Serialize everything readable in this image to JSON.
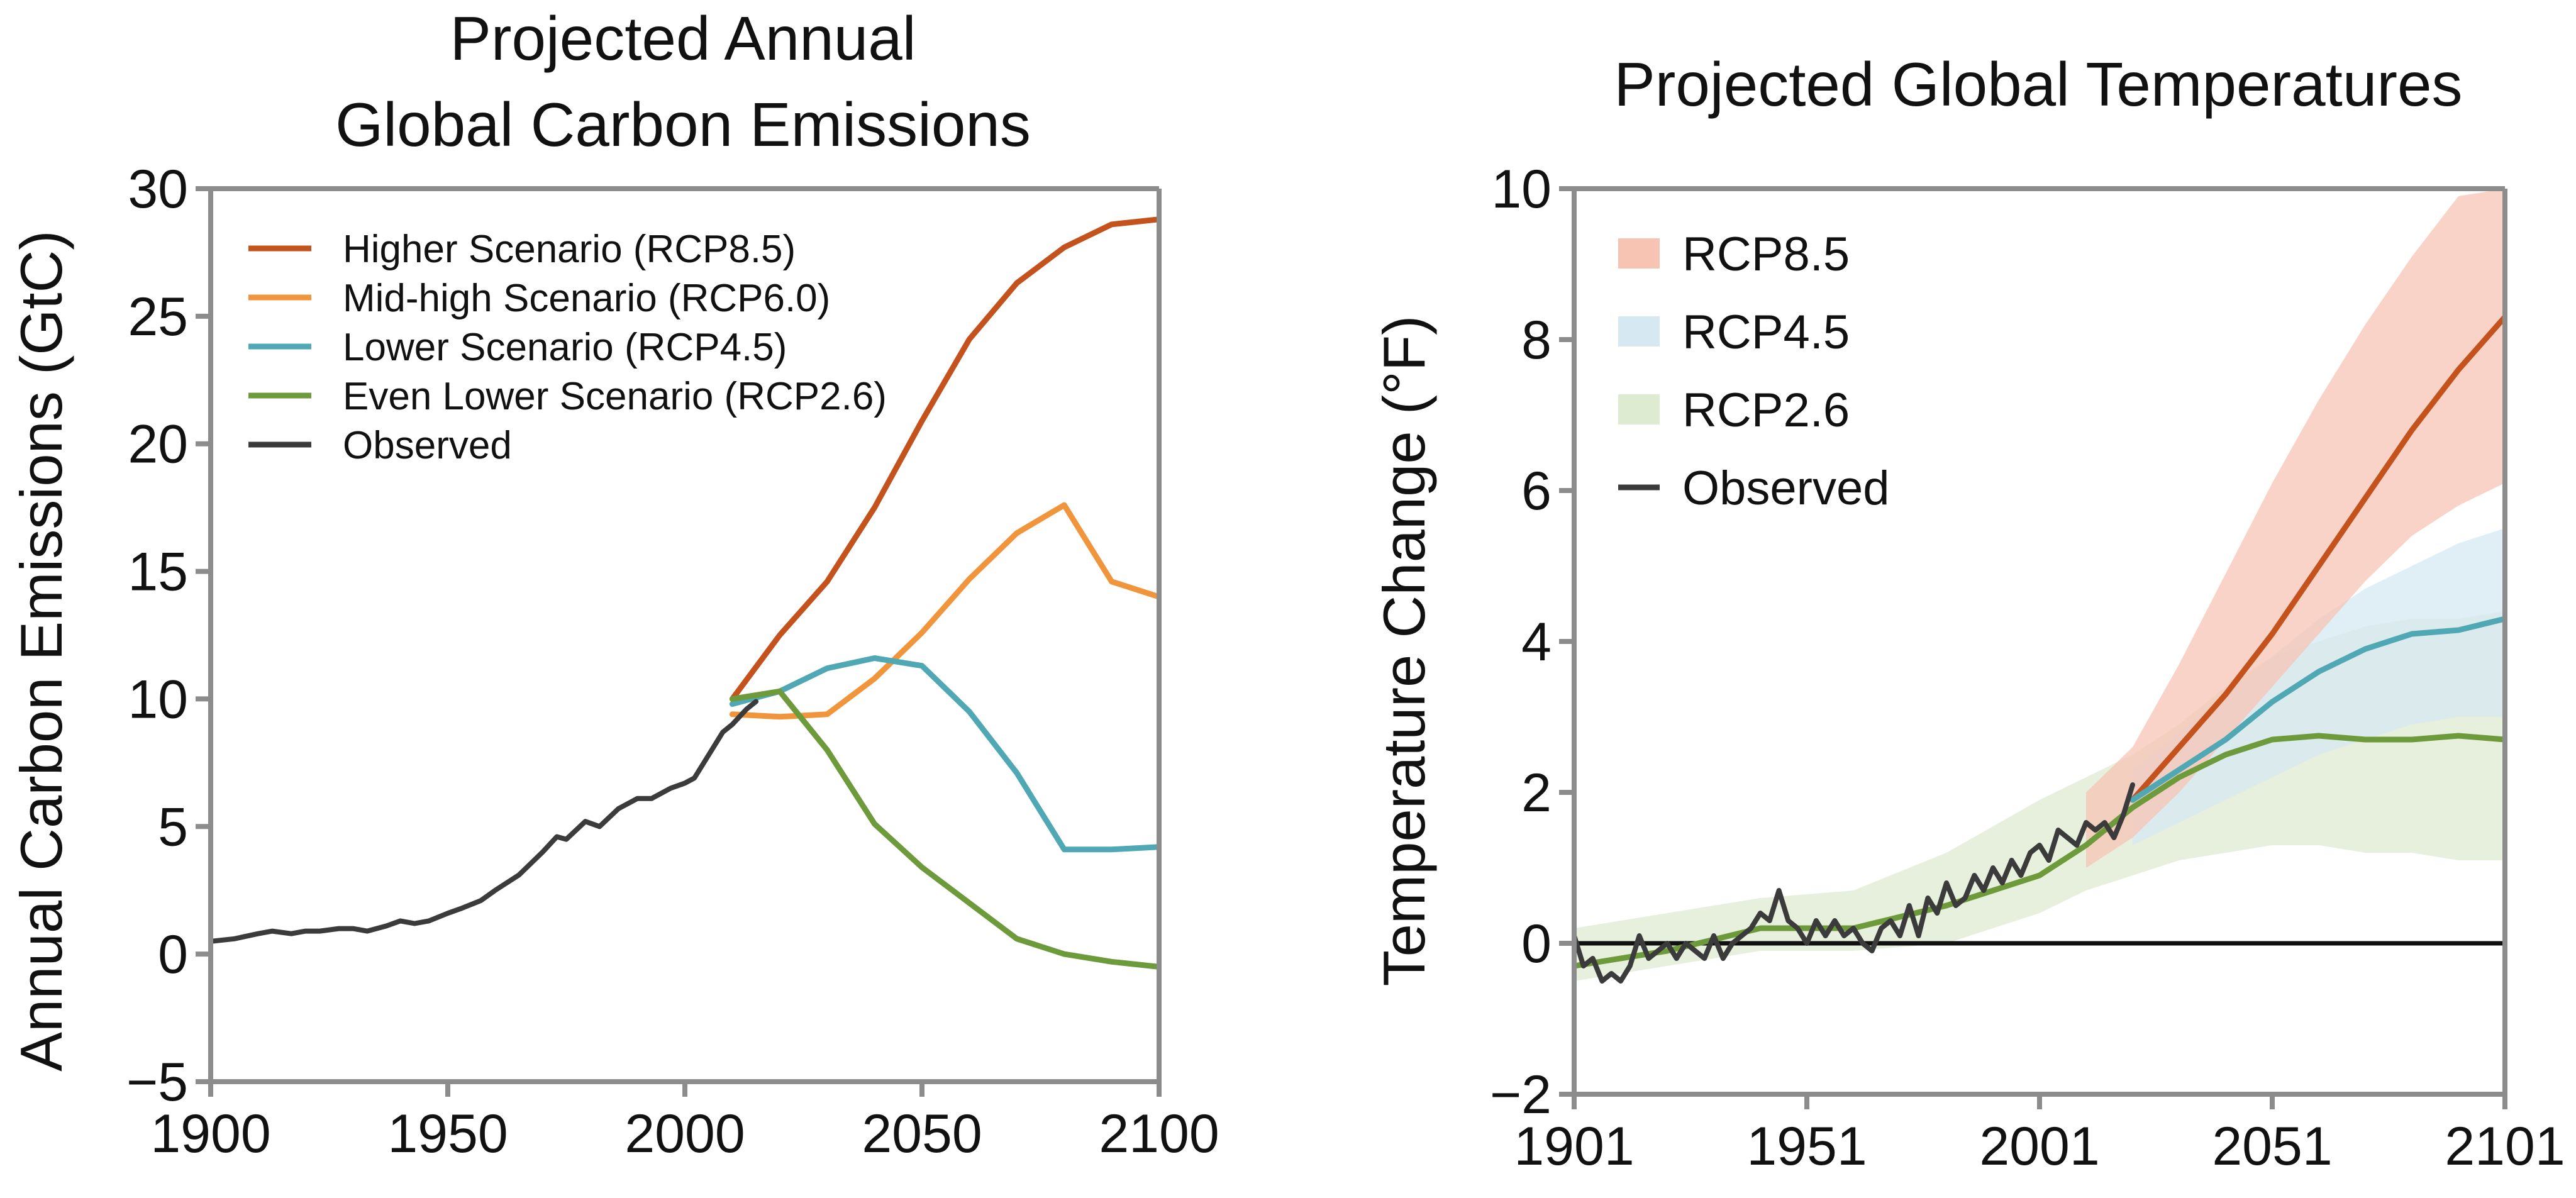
{
  "chart_data": [
    {
      "type": "line",
      "title": "Projected Annual Global Carbon Emissions",
      "title_lines": [
        "Projected Annual",
        "Global Carbon Emissions"
      ],
      "xlabel": "",
      "ylabel": "Annual Carbon Emissions (GtC)",
      "xlim": [
        1900,
        2100
      ],
      "ylim": [
        -5,
        30
      ],
      "x_ticks": [
        "1900",
        "1950",
        "2000",
        "2050",
        "2100"
      ],
      "y_ticks": [
        "−5",
        "0",
        "5",
        "10",
        "15",
        "20",
        "25",
        "30"
      ],
      "legend_position": "top-left",
      "series": [
        {
          "name": "Higher Scenario (RCP8.5)",
          "color": "#c4521c",
          "x": [
            2010,
            2020,
            2030,
            2040,
            2050,
            2060,
            2070,
            2080,
            2090,
            2100
          ],
          "y": [
            10.0,
            12.5,
            14.6,
            17.5,
            20.9,
            24.1,
            26.3,
            27.7,
            28.6,
            28.8
          ]
        },
        {
          "name": "Mid-high Scenario (RCP6.0)",
          "color": "#f0953b",
          "x": [
            2010,
            2020,
            2030,
            2040,
            2050,
            2060,
            2070,
            2080,
            2090,
            2100
          ],
          "y": [
            9.4,
            9.3,
            9.4,
            10.8,
            12.6,
            14.7,
            16.5,
            17.6,
            14.6,
            14.0
          ]
        },
        {
          "name": "Lower Scenario (RCP4.5)",
          "color": "#4fa8b3",
          "x": [
            2010,
            2020,
            2030,
            2040,
            2050,
            2060,
            2070,
            2080,
            2090,
            2100
          ],
          "y": [
            9.8,
            10.3,
            11.2,
            11.6,
            11.3,
            9.5,
            7.1,
            4.1,
            4.1,
            4.2
          ]
        },
        {
          "name": "Even Lower Scenario (RCP2.6)",
          "color": "#6d9a3a",
          "x": [
            2010,
            2020,
            2030,
            2040,
            2050,
            2060,
            2070,
            2080,
            2090,
            2100
          ],
          "y": [
            10.0,
            10.3,
            8.0,
            5.1,
            3.4,
            2.0,
            0.6,
            0.0,
            -0.3,
            -0.5
          ]
        },
        {
          "name": "Observed",
          "color": "#3b3b3b",
          "x": [
            1900,
            1905,
            1910,
            1913,
            1917,
            1920,
            1923,
            1927,
            1930,
            1933,
            1937,
            1940,
            1943,
            1946,
            1950,
            1953,
            1957,
            1960,
            1965,
            1970,
            1973,
            1975,
            1979,
            1982,
            1986,
            1990,
            1993,
            1997,
            2000,
            2002,
            2005,
            2008,
            2010,
            2013,
            2015
          ],
          "y": [
            0.5,
            0.6,
            0.8,
            0.9,
            0.8,
            0.9,
            0.9,
            1.0,
            1.0,
            0.9,
            1.1,
            1.3,
            1.2,
            1.3,
            1.6,
            1.8,
            2.1,
            2.5,
            3.1,
            4.0,
            4.6,
            4.5,
            5.2,
            5.0,
            5.7,
            6.1,
            6.1,
            6.5,
            6.7,
            6.9,
            7.8,
            8.7,
            9.0,
            9.6,
            9.9
          ]
        }
      ]
    },
    {
      "type": "area",
      "title": "Projected Global Temperatures",
      "xlabel": "",
      "ylabel": "Temperature Change (°F)",
      "xlim": [
        1901,
        2101
      ],
      "ylim": [
        -2,
        10
      ],
      "x_ticks": [
        "1901",
        "1951",
        "2001",
        "2051",
        "2101"
      ],
      "y_ticks": [
        "−2",
        "0",
        "2",
        "4",
        "6",
        "8",
        "10"
      ],
      "legend_position": "top-left",
      "reference_line": 0,
      "bands": [
        {
          "name": "RCP2.6",
          "color": "#ddebd1",
          "x": [
            1901,
            1921,
            1941,
            1961,
            1981,
            2001,
            2011,
            2021,
            2031,
            2041,
            2051,
            2061,
            2071,
            2081,
            2091,
            2101
          ],
          "low": [
            -0.5,
            -0.3,
            -0.1,
            -0.1,
            0.0,
            0.4,
            0.7,
            0.9,
            1.1,
            1.2,
            1.3,
            1.3,
            1.2,
            1.2,
            1.1,
            1.1
          ],
          "high": [
            0.2,
            0.4,
            0.6,
            0.7,
            1.2,
            1.9,
            2.2,
            2.5,
            2.9,
            3.4,
            3.8,
            4.0,
            4.2,
            4.3,
            4.3,
            4.4
          ]
        },
        {
          "name": "RCP4.5",
          "color": "#d6e8f1",
          "x": [
            2021,
            2031,
            2041,
            2051,
            2061,
            2071,
            2081,
            2091,
            2101
          ],
          "low": [
            1.3,
            1.6,
            1.9,
            2.2,
            2.5,
            2.7,
            2.9,
            3.0,
            3.0
          ],
          "high": [
            2.3,
            2.8,
            3.3,
            3.8,
            4.3,
            4.7,
            5.0,
            5.3,
            5.5
          ]
        },
        {
          "name": "RCP8.5",
          "color": "#f7c4b4",
          "x": [
            2011,
            2021,
            2031,
            2041,
            2051,
            2061,
            2071,
            2081,
            2091,
            2101
          ],
          "low": [
            1.0,
            1.4,
            2.0,
            2.7,
            3.4,
            4.1,
            4.8,
            5.4,
            5.8,
            6.1
          ],
          "high": [
            2.0,
            2.6,
            3.7,
            4.9,
            6.1,
            7.2,
            8.2,
            9.1,
            9.9,
            10.0
          ]
        }
      ],
      "series": [
        {
          "name": "RCP8.5",
          "color": "#c4521c",
          "x": [
            2021,
            2031,
            2041,
            2051,
            2061,
            2071,
            2081,
            2091,
            2101
          ],
          "y": [
            1.9,
            2.6,
            3.3,
            4.1,
            5.0,
            5.9,
            6.8,
            7.6,
            8.3
          ]
        },
        {
          "name": "RCP4.5",
          "color": "#4fa8b3",
          "x": [
            2021,
            2031,
            2041,
            2051,
            2061,
            2071,
            2081,
            2091,
            2101
          ],
          "y": [
            1.9,
            2.3,
            2.7,
            3.2,
            3.6,
            3.9,
            4.1,
            4.15,
            4.3
          ]
        },
        {
          "name": "RCP2.6",
          "color": "#6d9a3a",
          "x": [
            1901,
            1921,
            1941,
            1961,
            1981,
            2001,
            2011,
            2021,
            2031,
            2041,
            2051,
            2061,
            2071,
            2081,
            2091,
            2101
          ],
          "y": [
            -0.3,
            -0.1,
            0.2,
            0.2,
            0.5,
            0.9,
            1.3,
            1.8,
            2.2,
            2.5,
            2.7,
            2.75,
            2.7,
            2.7,
            2.75,
            2.7
          ]
        },
        {
          "name": "Observed",
          "color": "#3b3b3b",
          "x": [
            1901,
            1903,
            1905,
            1907,
            1909,
            1911,
            1913,
            1915,
            1917,
            1919,
            1921,
            1923,
            1925,
            1927,
            1929,
            1931,
            1933,
            1935,
            1937,
            1939,
            1941,
            1943,
            1945,
            1947,
            1949,
            1951,
            1953,
            1955,
            1957,
            1959,
            1961,
            1963,
            1965,
            1967,
            1969,
            1971,
            1973,
            1975,
            1977,
            1979,
            1981,
            1983,
            1985,
            1987,
            1989,
            1991,
            1993,
            1995,
            1997,
            1999,
            2001,
            2003,
            2005,
            2007,
            2009,
            2011,
            2013,
            2015,
            2017,
            2019,
            2021
          ],
          "y": [
            0.1,
            -0.3,
            -0.2,
            -0.5,
            -0.4,
            -0.5,
            -0.3,
            0.1,
            -0.2,
            -0.1,
            0.0,
            -0.2,
            0.0,
            -0.1,
            -0.2,
            0.1,
            -0.2,
            0.0,
            0.1,
            0.2,
            0.4,
            0.3,
            0.7,
            0.3,
            0.2,
            0.0,
            0.3,
            0.1,
            0.3,
            0.1,
            0.2,
            0.0,
            -0.1,
            0.2,
            0.3,
            0.1,
            0.5,
            0.1,
            0.6,
            0.4,
            0.8,
            0.5,
            0.6,
            0.9,
            0.7,
            1.0,
            0.8,
            1.1,
            0.9,
            1.2,
            1.3,
            1.1,
            1.5,
            1.4,
            1.3,
            1.6,
            1.5,
            1.6,
            1.4,
            1.7,
            2.1
          ]
        }
      ]
    }
  ]
}
